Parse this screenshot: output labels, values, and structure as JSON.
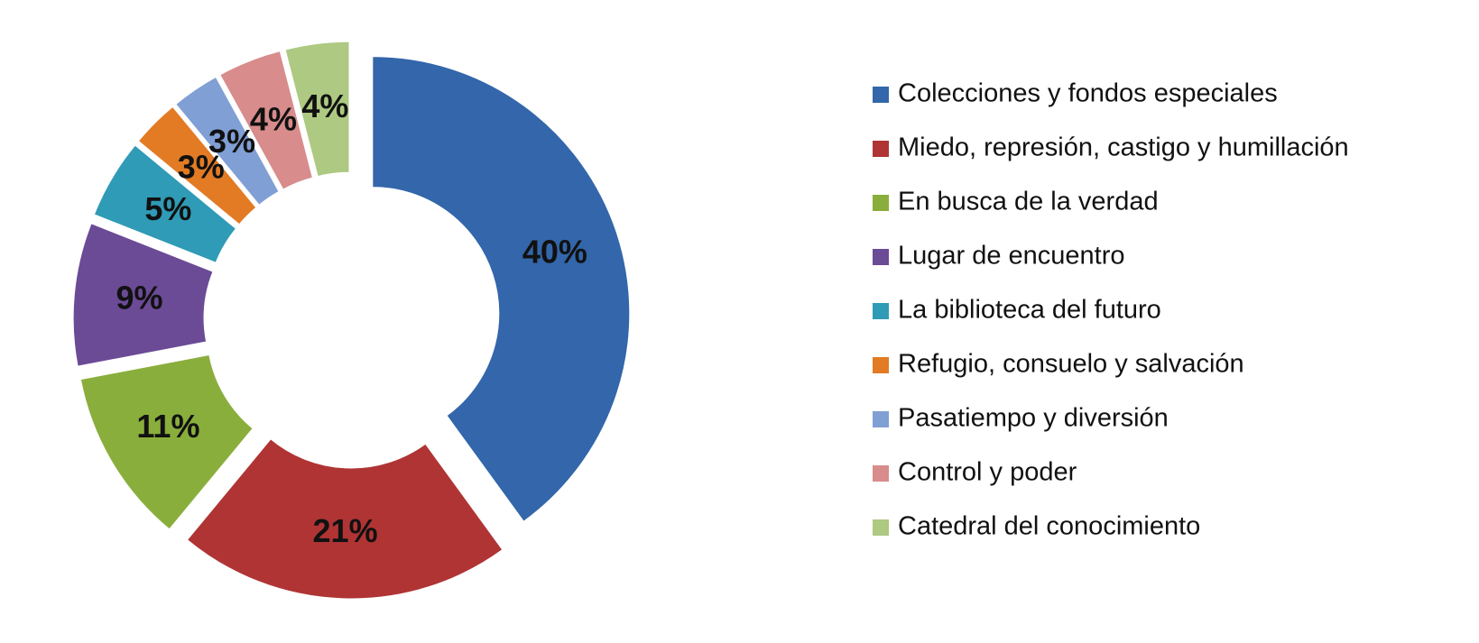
{
  "chart_data": {
    "type": "donut",
    "categories": [
      "Colecciones y fondos especiales",
      "Miedo, represión, castigo y humillación",
      "En busca de la verdad",
      "Lugar de encuentro",
      "La biblioteca del futuro",
      "Refugio, consuelo y salvación",
      "Pasatiempo y diversión",
      "Control y poder",
      "Catedral del conocimiento"
    ],
    "values": [
      40,
      21,
      11,
      9,
      5,
      3,
      3,
      4,
      4
    ],
    "value_labels": [
      "40%",
      "21%",
      "11%",
      "9%",
      "5%",
      "3%",
      "3%",
      "4%",
      "4%"
    ],
    "colors": [
      "#3366aa",
      "#b03434",
      "#8aae3c",
      "#6b4a96",
      "#2f9bb6",
      "#e27b24",
      "#809fd4",
      "#d88c8c",
      "#adc982"
    ],
    "legend": "right"
  }
}
